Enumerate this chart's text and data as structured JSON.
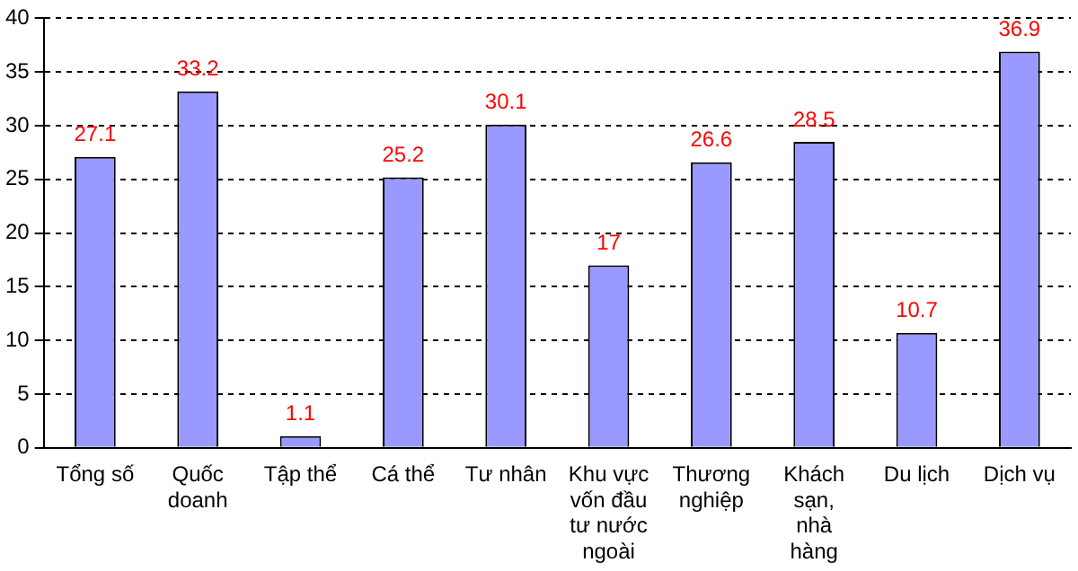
{
  "chart_data": {
    "type": "bar",
    "categories": [
      "Tổng số",
      "Quốc doanh",
      "Tập thể",
      "Cá thể",
      "Tư nhân",
      "Khu vực vốn đầu tư nước ngoài",
      "Thương nghiệp",
      "Khách sạn, nhà hàng",
      "Du lịch",
      "Dịch vụ"
    ],
    "values": [
      27.1,
      33.2,
      1.1,
      25.2,
      30.1,
      17,
      26.6,
      28.5,
      10.7,
      36.9
    ],
    "color": "#9999ff",
    "ylim": [
      0,
      40
    ],
    "yticks": [
      0,
      5,
      10,
      15,
      20,
      25,
      30,
      35,
      40
    ],
    "grid": "y",
    "data_labels": true,
    "legend": false
  }
}
